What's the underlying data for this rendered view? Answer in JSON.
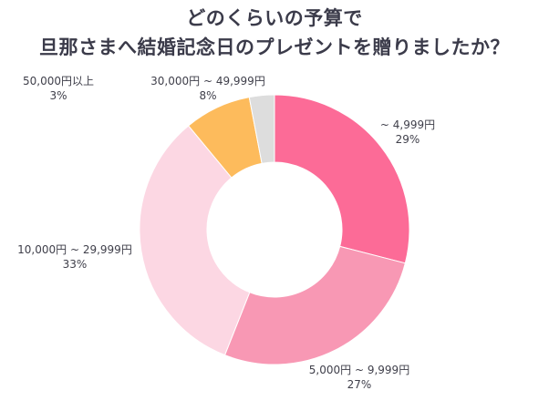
{
  "title_lines": [
    "どのくらいの予算で",
    "旦那さまへ結婚記念日のプレゼントを贈りましたか？"
  ],
  "chart_data": {
    "type": "pie",
    "donut": true,
    "unit": "%",
    "slices": [
      {
        "label": "~ 4,999円",
        "value": 29,
        "color": "#fc6b97"
      },
      {
        "label": "5,000円 ~ 9,999円",
        "value": 27,
        "color": "#f898b4"
      },
      {
        "label": "10,000円 ~ 29,999円",
        "value": 33,
        "color": "#fcd7e3"
      },
      {
        "label": "30,000円 ~ 49,999円",
        "value": 8,
        "color": "#fdbb5c"
      },
      {
        "label": "50,000円以上",
        "value": 3,
        "color": "#dddddd"
      }
    ]
  }
}
